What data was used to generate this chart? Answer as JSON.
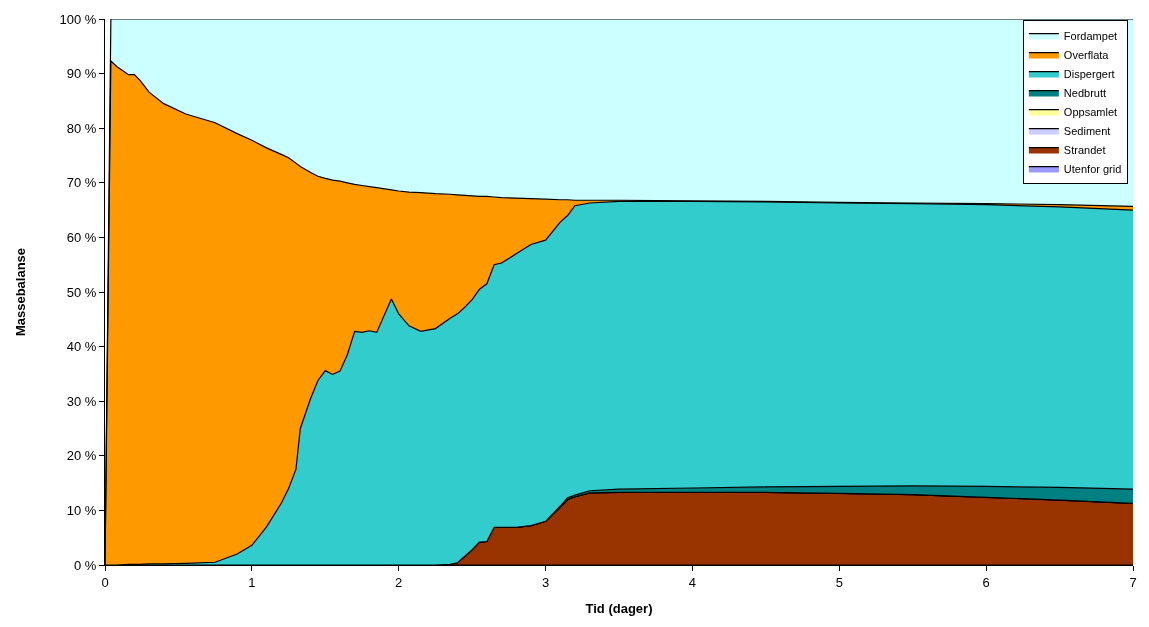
{
  "chart_data": {
    "type": "area",
    "stacked": true,
    "xlabel": "Tid (dager)",
    "ylabel": "Massebalanse",
    "x": [
      0,
      0.04,
      0.08,
      0.16,
      0.2,
      0.24,
      0.3,
      0.4,
      0.55,
      0.75,
      0.9,
      1.0,
      1.1,
      1.2,
      1.25,
      1.3,
      1.33,
      1.4,
      1.45,
      1.5,
      1.55,
      1.6,
      1.65,
      1.7,
      1.75,
      1.8,
      1.85,
      1.95,
      2.0,
      2.07,
      2.15,
      2.25,
      2.35,
      2.4,
      2.45,
      2.5,
      2.55,
      2.6,
      2.65,
      2.7,
      2.8,
      2.9,
      3.0,
      3.1,
      3.15,
      3.2,
      3.3,
      3.5,
      4.0,
      4.5,
      5.0,
      5.5,
      6.0,
      6.5,
      7.0
    ],
    "xlim": [
      0,
      7
    ],
    "xticks": [
      0,
      1,
      2,
      3,
      4,
      5,
      6,
      7
    ],
    "ylim": [
      0,
      100
    ],
    "yticks": [
      {
        "value": 0,
        "label": "0 %"
      },
      {
        "value": 10,
        "label": "10 %"
      },
      {
        "value": 20,
        "label": "20 %"
      },
      {
        "value": 30,
        "label": "30 %"
      },
      {
        "value": 40,
        "label": "40 %"
      },
      {
        "value": 50,
        "label": "50 %"
      },
      {
        "value": 60,
        "label": "60 %"
      },
      {
        "value": 70,
        "label": "70 %"
      },
      {
        "value": 80,
        "label": "80 %"
      },
      {
        "value": 90,
        "label": "90 %"
      },
      {
        "value": 100,
        "label": "100 %"
      }
    ],
    "legend": "top right",
    "series": [
      {
        "name": "Utenfor grid",
        "color": "#9999ff",
        "values": [
          null,
          null,
          null,
          null,
          null,
          null,
          null,
          null,
          null,
          null,
          null,
          null,
          null,
          null,
          null,
          null,
          null,
          null,
          null,
          null,
          null,
          null,
          null,
          null,
          null,
          null,
          null,
          null,
          null,
          null,
          null,
          null,
          null,
          null,
          null,
          null,
          null,
          null,
          null,
          null,
          null,
          null,
          null,
          null,
          null,
          null,
          null,
          null,
          null,
          null,
          null,
          null,
          null,
          null,
          null
        ]
      },
      {
        "name": "Strandet",
        "color": "#993300",
        "values": [
          0,
          0,
          0,
          0,
          0,
          0,
          0,
          0,
          0,
          0,
          0,
          0,
          0,
          0,
          0,
          0,
          0,
          0,
          0,
          0,
          0,
          0,
          0,
          0,
          0,
          0,
          0,
          0,
          0,
          0,
          0,
          0,
          0.1,
          0.4,
          1.6,
          2.8,
          4.2,
          4.3,
          6.9,
          6.9,
          6.9,
          7.2,
          8.0,
          10.6,
          12.0,
          12.5,
          13.2,
          13.3,
          13.3,
          13.3,
          13.1,
          12.9,
          12.4,
          11.9,
          11.3
        ]
      },
      {
        "name": "Sediment",
        "color": "#ccccff",
        "values": [
          null,
          null,
          null,
          null,
          null,
          null,
          null,
          null,
          null,
          null,
          null,
          null,
          null,
          null,
          null,
          null,
          null,
          null,
          null,
          null,
          null,
          null,
          null,
          null,
          null,
          null,
          null,
          null,
          null,
          null,
          null,
          null,
          null,
          null,
          null,
          null,
          null,
          null,
          null,
          null,
          null,
          null,
          null,
          null,
          null,
          null,
          null,
          null,
          null,
          null,
          null,
          null,
          null,
          null,
          null
        ]
      },
      {
        "name": "Oppsamlet",
        "color": "#ffff99",
        "values": [
          null,
          null,
          null,
          null,
          null,
          null,
          null,
          null,
          null,
          null,
          null,
          null,
          null,
          null,
          null,
          null,
          null,
          null,
          null,
          null,
          null,
          null,
          null,
          null,
          null,
          null,
          null,
          null,
          null,
          null,
          null,
          null,
          null,
          null,
          null,
          null,
          null,
          null,
          null,
          null,
          null,
          null,
          null,
          null,
          null,
          null,
          null,
          null,
          null,
          null,
          null,
          null,
          null,
          null,
          null
        ]
      },
      {
        "name": "Nedbrutt",
        "color": "#008080",
        "values": [
          0,
          0,
          0,
          0,
          0,
          0,
          0,
          0,
          0,
          0,
          0,
          0,
          0,
          0,
          0,
          0,
          0,
          0,
          0,
          0,
          0,
          0,
          0,
          0,
          0,
          0,
          0,
          0,
          0,
          0,
          0,
          0,
          0,
          0,
          0,
          0,
          0,
          0,
          0,
          0,
          0,
          0,
          0,
          0.2,
          0.3,
          0.3,
          0.4,
          0.6,
          0.8,
          1.0,
          1.3,
          1.6,
          2.0,
          2.3,
          2.6
        ]
      },
      {
        "name": "Dispergert",
        "color": "#33cccc",
        "values": [
          0,
          0,
          0,
          0.1,
          0.1,
          0.1,
          0.2,
          0.2,
          0.3,
          0.5,
          2.0,
          3.6,
          7.0,
          11.3,
          14.0,
          17.5,
          25.0,
          30.5,
          33.8,
          35.6,
          34.9,
          35.5,
          38.5,
          42.8,
          42.6,
          42.9,
          42.6,
          48.7,
          46.0,
          43.8,
          42.8,
          43.3,
          45.1,
          45.6,
          45.6,
          45.8,
          46.3,
          47.2,
          48.1,
          48.4,
          50.1,
          51.5,
          51.5,
          52.0,
          51.7,
          53.0,
          52.7,
          52.7,
          52.5,
          52.2,
          51.9,
          51.7,
          51.6,
          51.4,
          51.1
        ]
      },
      {
        "name": "Overflata",
        "color": "#ff9900",
        "values": [
          0,
          92.3,
          91.3,
          89.7,
          89.7,
          88.6,
          86.4,
          84.3,
          82.3,
          80.5,
          77.0,
          74.2,
          69.4,
          63.9,
          60.6,
          56.1,
          48.0,
          41.4,
          37.4,
          35.2,
          35.6,
          34.8,
          31.5,
          26.9,
          26.9,
          26.4,
          26.5,
          20.0,
          22.5,
          24.5,
          25.4,
          24.7,
          22.7,
          21.8,
          20.5,
          19.0,
          17.0,
          16.0,
          12.4,
          12.0,
          10.2,
          8.4,
          7.5,
          4.1,
          2.9,
          1.0,
          0.5,
          0.2,
          0.1,
          0.1,
          0.1,
          0.1,
          0.2,
          0.4,
          0.7
        ]
      },
      {
        "name": "Fordampet",
        "color": "#ccffff",
        "values": [
          0,
          7.7,
          8.7,
          10.2,
          10.2,
          11.3,
          13.4,
          15.5,
          17.4,
          19.0,
          21.0,
          22.2,
          23.6,
          24.8,
          25.4,
          26.4,
          27.0,
          28.1,
          28.8,
          29.2,
          29.5,
          29.7,
          30.0,
          30.3,
          30.5,
          30.7,
          30.9,
          31.3,
          31.5,
          31.7,
          31.8,
          32.0,
          32.1,
          32.2,
          32.3,
          32.4,
          32.5,
          32.5,
          32.6,
          32.7,
          32.8,
          32.9,
          33.0,
          33.1,
          33.1,
          33.2,
          33.2,
          33.2,
          33.3,
          33.4,
          33.6,
          33.7,
          33.8,
          34.0,
          34.3
        ]
      }
    ]
  }
}
